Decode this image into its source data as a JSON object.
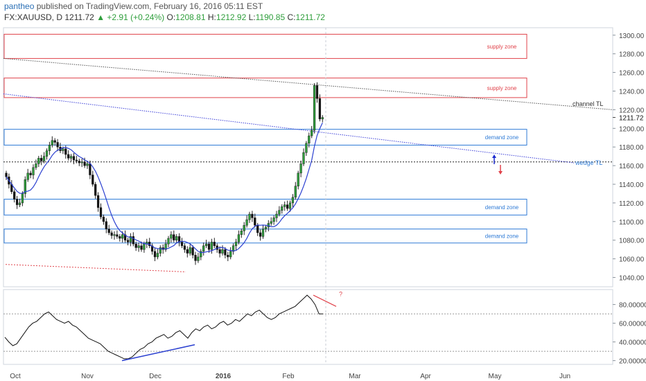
{
  "header": {
    "author": "pantheo",
    "published": "published on TradingView.com, February 16, 2016 05:11 EST",
    "symbol": "FX:XAUUSD, D",
    "last": "1211.72",
    "change": "▲ +2.91 (+0.24%)",
    "o_label": "O:",
    "o": "1208.81",
    "h_label": "H:",
    "h": "1212.92",
    "l_label": "L:",
    "l": "1190.85",
    "c_label": "C:",
    "c": "1211.72"
  },
  "chart_data": [
    {
      "type": "candlestick",
      "title": "FX:XAUUSD, D",
      "x_labels": [
        "Oct",
        "Nov",
        "Dec",
        "2016",
        "Feb",
        "Mar",
        "Apr",
        "May",
        "Jun"
      ],
      "y_ticks": [
        1040,
        1060,
        1080,
        1100,
        1120,
        1140,
        1160,
        1180,
        1200,
        1220,
        1240,
        1260,
        1280,
        1300
      ],
      "ylim": [
        1030,
        1308
      ],
      "last_price": 1211.72,
      "close_series": [
        1148,
        1140,
        1132,
        1124,
        1118,
        1120,
        1130,
        1145,
        1152,
        1150,
        1158,
        1162,
        1168,
        1165,
        1170,
        1176,
        1182,
        1187,
        1185,
        1180,
        1176,
        1178,
        1172,
        1168,
        1170,
        1166,
        1165,
        1163,
        1164,
        1160,
        1162,
        1150,
        1140,
        1128,
        1115,
        1105,
        1100,
        1092,
        1088,
        1085,
        1086,
        1084,
        1082,
        1086,
        1080,
        1078,
        1084,
        1076,
        1072,
        1074,
        1070,
        1076,
        1078,
        1074,
        1068,
        1062,
        1066,
        1072,
        1070,
        1076,
        1082,
        1086,
        1080,
        1084,
        1078,
        1074,
        1070,
        1066,
        1072,
        1064,
        1058,
        1062,
        1068,
        1074,
        1076,
        1070,
        1078,
        1074,
        1070,
        1066,
        1070,
        1064,
        1062,
        1068,
        1074,
        1078,
        1086,
        1090,
        1096,
        1102,
        1108,
        1104,
        1096,
        1088,
        1084,
        1092,
        1094,
        1098,
        1100,
        1104,
        1108,
        1112,
        1116,
        1118,
        1114,
        1120,
        1126,
        1138,
        1152,
        1162,
        1174,
        1184,
        1192,
        1198,
        1246,
        1232,
        1210,
        1211.72
      ],
      "zones": [
        {
          "label": "supply zone",
          "low": 1275,
          "high": 1301
        },
        {
          "label": "supply zone",
          "low": 1233,
          "high": 1254
        },
        {
          "label": "demand zone",
          "low": 1182,
          "high": 1199
        },
        {
          "label": "demand zone",
          "low": 1107,
          "high": 1124
        },
        {
          "label": "demand zone",
          "low": 1077,
          "high": 1092
        }
      ],
      "annotations": [
        "channel TL",
        "wedge TL"
      ],
      "horizontal_line": 1164
    },
    {
      "type": "line",
      "y_ticks": [
        20,
        40,
        60,
        80
      ],
      "ylim": [
        16,
        96
      ],
      "guide_lines": [
        70,
        30
      ],
      "values": [
        45,
        40,
        36,
        38,
        44,
        50,
        56,
        60,
        62,
        66,
        70,
        72,
        68,
        64,
        62,
        60,
        62,
        58,
        56,
        52,
        48,
        44,
        42,
        40,
        38,
        34,
        30,
        28,
        26,
        24,
        22,
        22,
        24,
        28,
        32,
        34,
        38,
        40,
        44,
        46,
        48,
        44,
        46,
        50,
        52,
        48,
        44,
        50,
        54,
        52,
        56,
        58,
        54,
        56,
        60,
        62,
        58,
        60,
        64,
        62,
        66,
        70,
        68,
        72,
        74,
        70,
        66,
        64,
        66,
        70,
        72,
        74,
        76,
        78,
        82,
        86,
        90,
        86,
        80,
        70,
        70
      ],
      "annotation": "?"
    }
  ],
  "colors": {
    "up_candle": "#2e9e3b",
    "down_candle": "#111111",
    "supply": "#e0424a",
    "demand": "#2f7bd6",
    "ma": "#2a3fd0"
  }
}
